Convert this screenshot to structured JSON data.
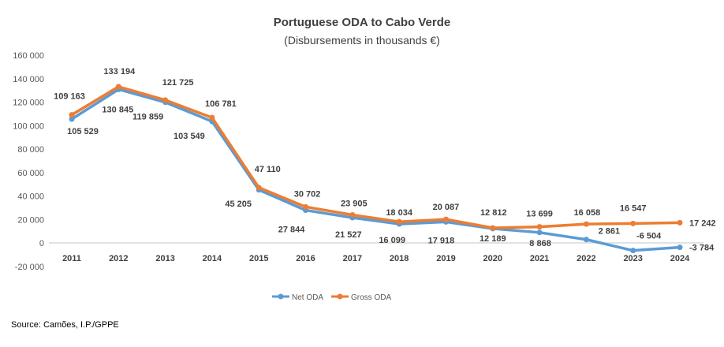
{
  "chart_data": {
    "type": "line",
    "title": "Portuguese ODA to Cabo Verde",
    "subtitle": "(Disbursements in thousands €)",
    "categories": [
      "2011",
      "2012",
      "2013",
      "2014",
      "2015",
      "2016",
      "2017",
      "2018",
      "2019",
      "2020",
      "2021",
      "2022",
      "2023",
      "2024"
    ],
    "series": [
      {
        "name": "Net ODA",
        "color": "#5b9bd5",
        "values": [
          105529,
          130845,
          119859,
          103549,
          45205,
          27844,
          21527,
          16099,
          17918,
          12189,
          8868,
          2861,
          -6504,
          -3784
        ],
        "labels": [
          "105 529",
          "130 845",
          "119 859",
          "103 549",
          "45 205",
          "27 844",
          "21 527",
          "16 099",
          "17 918",
          "12 189",
          "8 868",
          "2 861",
          "-6 504",
          "-3 784"
        ]
      },
      {
        "name": "Gross ODA",
        "color": "#ed7d31",
        "values": [
          109163,
          133194,
          121725,
          106781,
          47110,
          30702,
          23905,
          18034,
          20087,
          12812,
          13699,
          16058,
          16547,
          17242
        ],
        "labels": [
          "109 163",
          "133 194",
          "121 725",
          "106 781",
          "47 110",
          "30 702",
          "23 905",
          "18 034",
          "20 087",
          "12 812",
          "13 699",
          "16 058",
          "16 547",
          "17 242"
        ]
      }
    ],
    "ylim": [
      -20000,
      160000
    ],
    "yticks": [
      -20000,
      0,
      20000,
      40000,
      60000,
      80000,
      100000,
      120000,
      140000,
      160000
    ],
    "ytick_labels": [
      "-20 000",
      "0",
      "20 000",
      "40 000",
      "60 000",
      "80 000",
      "100 000",
      "120 000",
      "140 000",
      "160 000"
    ],
    "grid": false,
    "legend": "bottom",
    "source": "Source: Camões, I.P./GPPE"
  }
}
